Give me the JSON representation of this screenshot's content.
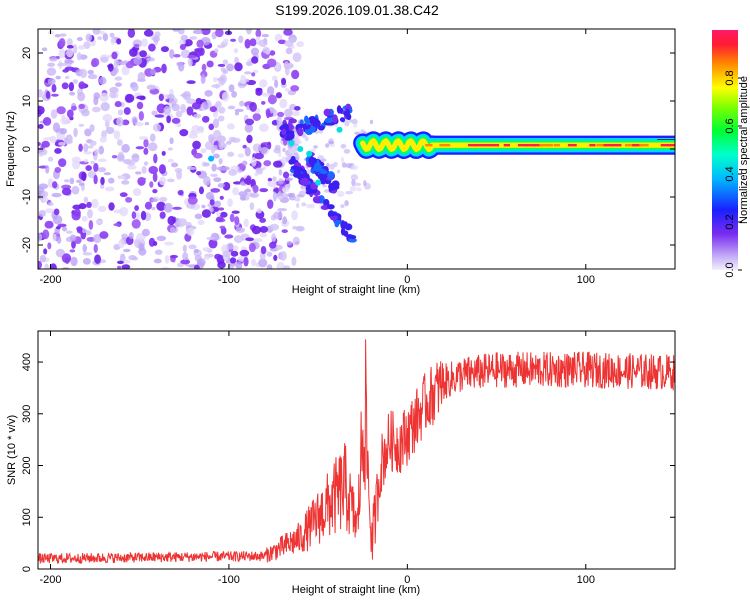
{
  "title": "S199.2026.109.01.38.C42",
  "chart_data": [
    {
      "type": "heatmap",
      "name": "spectrogram",
      "xlabel": "Height of straight line (km)",
      "ylabel": "Frequency (Hz)",
      "xlim": [
        -207,
        150
      ],
      "ylim": [
        -25,
        25
      ],
      "xticks": [
        -200,
        -100,
        0,
        100
      ],
      "yticks": [
        -20,
        -10,
        0,
        10,
        20
      ],
      "colorbar": {
        "label": "Normalized spectral amplitude",
        "range": [
          0,
          1
        ],
        "ticks": [
          0.0,
          0.2,
          0.4,
          0.6,
          0.8
        ],
        "tick_labels": [
          "0.0",
          "0.2",
          "0.4",
          "0.6",
          "0.8"
        ]
      },
      "features": {
        "noise_region_km": [
          -207,
          -70
        ],
        "dispersion_start_km": -75,
        "narrowband_start_km": -25,
        "narrowband_frequency_hz": 0.8
      }
    },
    {
      "type": "line",
      "name": "snr",
      "xlabel": "Height of straight line (km)",
      "ylabel": "SNR (10 * v/v)",
      "xlim": [
        -207,
        150
      ],
      "ylim": [
        0,
        460
      ],
      "xticks": [
        -200,
        -100,
        0,
        100
      ],
      "yticks": [
        0,
        100,
        200,
        300,
        400
      ],
      "series": [
        {
          "name": "SNR",
          "color": "#ee3333",
          "control_points": {
            "x": [
              -207,
              -80,
              -60,
              -45,
              -35,
              -28,
              -24,
              -20,
              -15,
              -10,
              -5,
              0,
              10,
              20,
              30,
              50,
              100,
              150
            ],
            "y": [
              20,
              25,
              60,
              120,
              160,
              80,
              330,
              40,
              200,
              250,
              240,
              260,
              320,
              360,
              375,
              385,
              385,
              380
            ]
          }
        }
      ]
    }
  ],
  "colors": {
    "background": "#ffffff",
    "axes": "#000000",
    "line": "#ee3333",
    "noise_purple": "#7a2cf0",
    "noise_light": "#c9b6f7"
  }
}
